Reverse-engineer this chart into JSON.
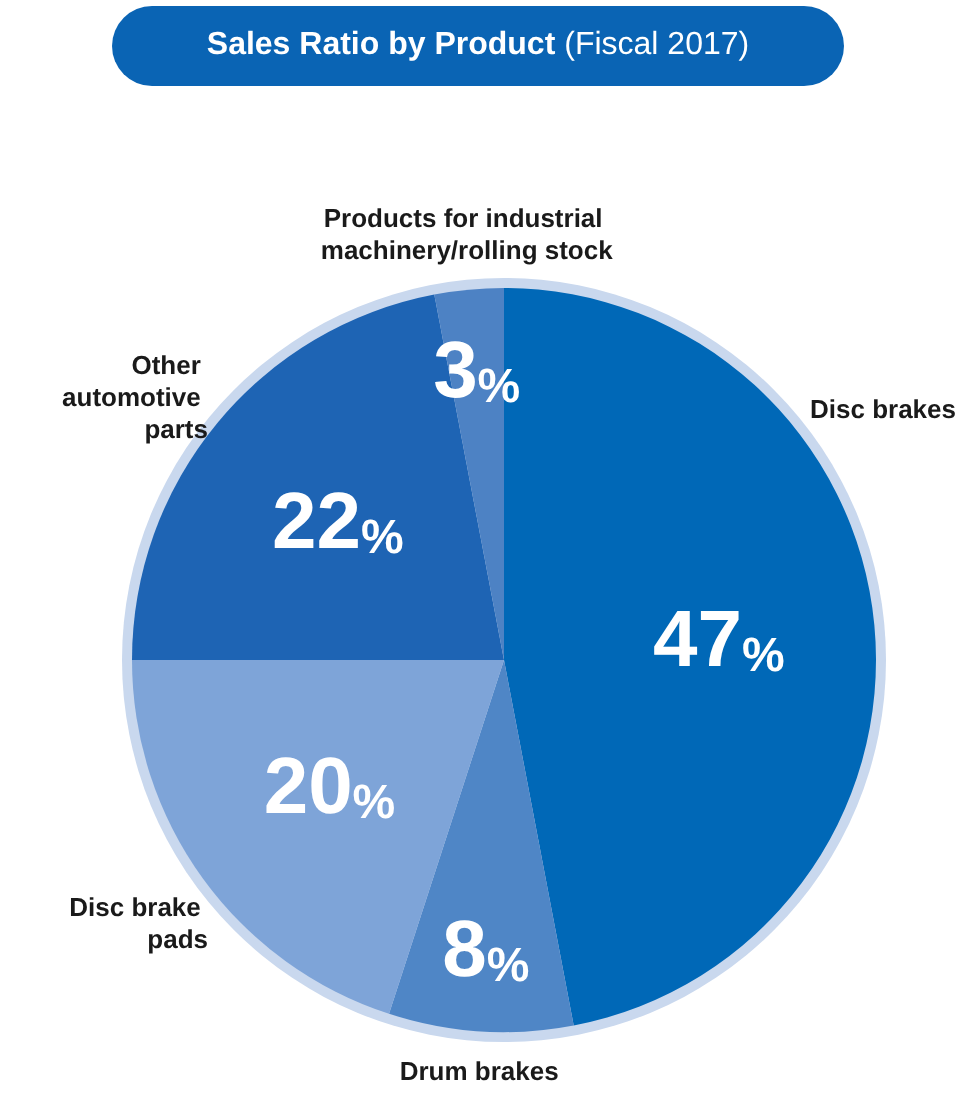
{
  "chart_data": {
    "type": "pie",
    "title": "Sales Ratio by Product (Fiscal 2017)",
    "categories": [
      "Disc brakes",
      "Drum brakes",
      "Disc brake pads",
      "Other automotive parts",
      "Products for industrial machinery/rolling stock"
    ],
    "values": [
      47,
      8,
      20,
      22,
      3
    ],
    "colors": [
      "#0068b7",
      "#4f86c6",
      "#7ea4d8",
      "#1e64b4",
      "#4d82c4"
    ],
    "value_labels": [
      "47%",
      "8%",
      "20%",
      "22%",
      "3%"
    ],
    "legend": false
  }
}
